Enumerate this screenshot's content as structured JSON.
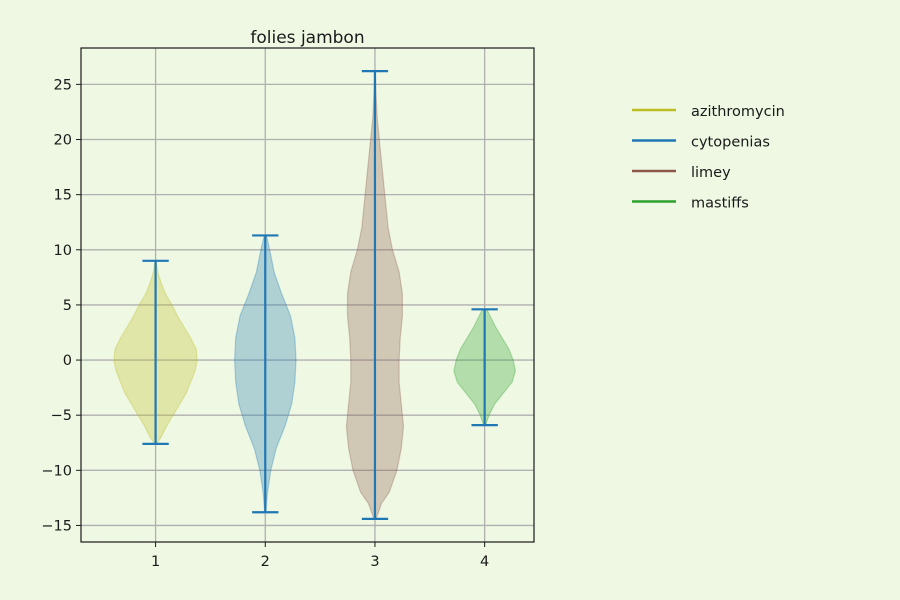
{
  "chart_data": {
    "type": "violin",
    "title": "folies jambon",
    "xlabel": "",
    "ylabel": "",
    "categories": [
      "1",
      "2",
      "3",
      "4"
    ],
    "xlim": [
      0.32,
      4.45
    ],
    "ylim": [
      -16.5,
      28.3
    ],
    "yticks": [
      -15,
      -10,
      -5,
      0,
      5,
      10,
      15,
      20,
      25
    ],
    "grid": true,
    "legend_position": "right",
    "series": [
      {
        "name": "azithromycin",
        "position": 1,
        "color": "#bcbd22",
        "min": -7.6,
        "max": 9.0,
        "density": [
          [
            -7.6,
            0.01
          ],
          [
            -7,
            0.05
          ],
          [
            -6,
            0.1
          ],
          [
            -5,
            0.16
          ],
          [
            -4,
            0.22
          ],
          [
            -3,
            0.28
          ],
          [
            -2,
            0.32
          ],
          [
            -1,
            0.36
          ],
          [
            0,
            0.38
          ],
          [
            1,
            0.37
          ],
          [
            2,
            0.32
          ],
          [
            3,
            0.26
          ],
          [
            4,
            0.2
          ],
          [
            5,
            0.15
          ],
          [
            6,
            0.09
          ],
          [
            7,
            0.05
          ],
          [
            8,
            0.02
          ],
          [
            9,
            0.005
          ]
        ]
      },
      {
        "name": "cytopenias",
        "position": 2,
        "color": "#1f77b4",
        "min": -13.8,
        "max": 11.3,
        "density": [
          [
            -13.8,
            0.005
          ],
          [
            -12,
            0.02
          ],
          [
            -10,
            0.05
          ],
          [
            -8,
            0.1
          ],
          [
            -6,
            0.18
          ],
          [
            -4,
            0.24
          ],
          [
            -2,
            0.27
          ],
          [
            0,
            0.28
          ],
          [
            2,
            0.27
          ],
          [
            4,
            0.23
          ],
          [
            6,
            0.15
          ],
          [
            8,
            0.08
          ],
          [
            9,
            0.06
          ],
          [
            10,
            0.04
          ],
          [
            11.3,
            0.01
          ]
        ]
      },
      {
        "name": "limey",
        "position": 3,
        "color": "#8c564b",
        "min": -14.4,
        "max": 26.2,
        "density": [
          [
            -14.4,
            0.01
          ],
          [
            -13,
            0.06
          ],
          [
            -12,
            0.13
          ],
          [
            -10,
            0.2
          ],
          [
            -8,
            0.24
          ],
          [
            -6,
            0.26
          ],
          [
            -4,
            0.24
          ],
          [
            -2,
            0.22
          ],
          [
            0,
            0.22
          ],
          [
            2,
            0.23
          ],
          [
            4,
            0.25
          ],
          [
            6,
            0.25
          ],
          [
            8,
            0.22
          ],
          [
            10,
            0.16
          ],
          [
            12,
            0.12
          ],
          [
            14,
            0.1
          ],
          [
            16,
            0.08
          ],
          [
            18,
            0.06
          ],
          [
            20,
            0.04
          ],
          [
            22,
            0.02
          ],
          [
            24,
            0.01
          ],
          [
            26.2,
            0.003
          ]
        ]
      },
      {
        "name": "mastiffs",
        "position": 4,
        "color": "#2ca02c",
        "min": -5.9,
        "max": 4.6,
        "density": [
          [
            -5.9,
            0.01
          ],
          [
            -5,
            0.04
          ],
          [
            -4,
            0.09
          ],
          [
            -3,
            0.17
          ],
          [
            -2,
            0.25
          ],
          [
            -1,
            0.28
          ],
          [
            0,
            0.26
          ],
          [
            1,
            0.22
          ],
          [
            2,
            0.16
          ],
          [
            3,
            0.1
          ],
          [
            4,
            0.05
          ],
          [
            4.6,
            0.02
          ]
        ]
      }
    ],
    "whisker_color": "#1f77b4"
  }
}
